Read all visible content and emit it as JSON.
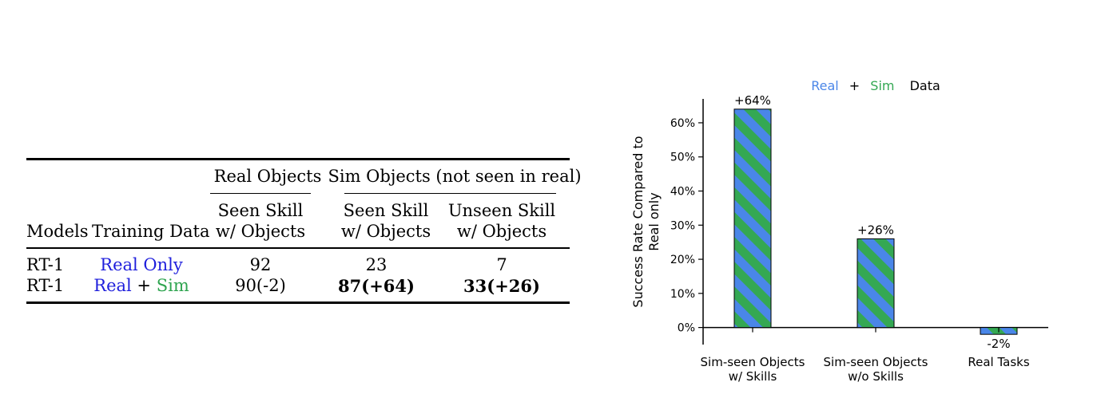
{
  "table": {
    "headers": {
      "models": "Models",
      "training_data": "Training Data",
      "real_objects": "Real Objects",
      "sim_objects": "Sim Objects (not seen in real)",
      "col1": [
        "Seen Skill",
        "w/ Objects"
      ],
      "col2": [
        "Seen Skill",
        "w/ Objects"
      ],
      "col3": [
        "Unseen Skill",
        "w/ Objects"
      ]
    },
    "rows": [
      {
        "model": "RT-1",
        "data_real": "Real Only",
        "data_plus": "",
        "data_sim": "",
        "v1": "92",
        "v2": "23",
        "v3": "7"
      },
      {
        "model": "RT-1",
        "data_real": "Real",
        "data_plus": "+",
        "data_sim": "Sim",
        "v1": "90(-2)",
        "v2": "87(+64)",
        "v3": "33(+26)"
      }
    ]
  },
  "chart_data": {
    "type": "bar",
    "title_parts": [
      {
        "text": "Real",
        "color": "#4a86e8"
      },
      {
        "text": "+",
        "color": "#000000"
      },
      {
        "text": "Sim",
        "color": "#34a853"
      },
      {
        "text": "Data",
        "color": "#000000"
      }
    ],
    "ylabel": [
      "Success Rate Compared to",
      "Real only"
    ],
    "categories": [
      [
        "Sim-seen Objects",
        "w/ Skills"
      ],
      [
        "Sim-seen Objects",
        "w/o Skills"
      ],
      [
        "Real Tasks"
      ]
    ],
    "values": [
      64,
      26,
      -2
    ],
    "data_labels": [
      "+64%",
      "+26%",
      "-2%"
    ],
    "yticks": [
      0,
      10,
      20,
      30,
      40,
      50,
      60
    ],
    "ytick_labels": [
      "0%",
      "10%",
      "20%",
      "30%",
      "40%",
      "50%",
      "60%"
    ],
    "ylim": [
      -5,
      67
    ],
    "colors": {
      "blue": "#4a86e8",
      "green": "#34a853"
    }
  }
}
